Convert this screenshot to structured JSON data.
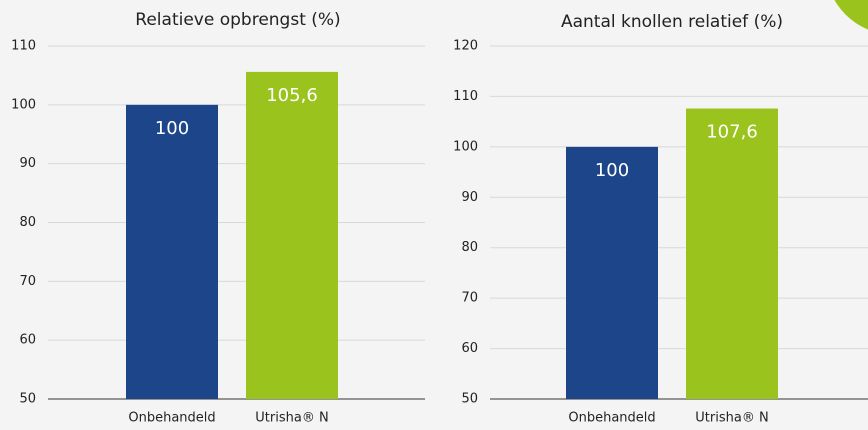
{
  "chart_data": [
    {
      "type": "bar",
      "title": "Relatieve opbrengst (%)",
      "categories": [
        "Onbehandeld",
        "Utrisha® N"
      ],
      "values": [
        100,
        105.6
      ],
      "value_labels": [
        "100",
        "105,6"
      ],
      "colors": [
        "#1d4589",
        "#9bc31d"
      ],
      "ylim": [
        50,
        110
      ],
      "yticks": [
        50,
        60,
        70,
        80,
        90,
        100,
        110
      ],
      "grid": true
    },
    {
      "type": "bar",
      "title": "Aantal knollen relatief (%)",
      "categories": [
        "Onbehandeld",
        "Utrisha® N"
      ],
      "values": [
        100,
        107.6
      ],
      "value_labels": [
        "100",
        "107,6"
      ],
      "colors": [
        "#1d4589",
        "#9bc31d"
      ],
      "ylim": [
        50,
        120
      ],
      "yticks": [
        50,
        60,
        70,
        80,
        90,
        100,
        110,
        120
      ],
      "grid": true
    }
  ]
}
